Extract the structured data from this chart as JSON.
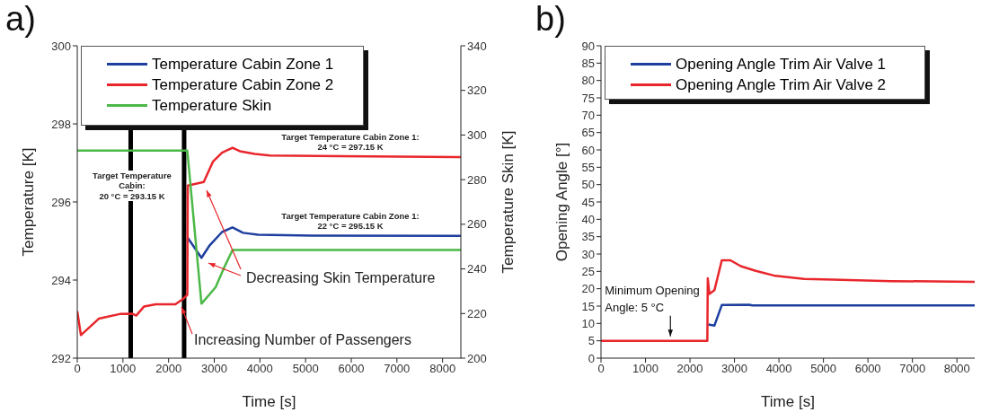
{
  "chart_data": [
    {
      "type": "line",
      "title": "a)",
      "xlabel": "Time [s]",
      "ylabel": "Temperature [K]",
      "y2label": "Temperature Skin [K]",
      "xlim": [
        0,
        8400
      ],
      "xticks": [
        0,
        1000,
        2000,
        3000,
        4000,
        5000,
        6000,
        7000,
        8000
      ],
      "ylim": [
        292,
        300
      ],
      "yticks": [
        292,
        294,
        296,
        298,
        300
      ],
      "y2lim": [
        200,
        340
      ],
      "y2ticks": [
        200,
        220,
        240,
        260,
        280,
        300,
        320,
        340
      ],
      "legend": "top",
      "marker": "none",
      "line_style": "solid",
      "series": [
        {
          "name": "Temperature Cabin Zone 1",
          "color": "#1f3f9f",
          "x": [
            2420,
            2720,
            2900,
            3170,
            3400,
            3630,
            3960,
            5140,
            8400
          ],
          "values": [
            295.08,
            294.57,
            294.89,
            295.23,
            295.35,
            295.21,
            295.16,
            295.14,
            295.13
          ]
        },
        {
          "name": "Temperature Cabin Zone 2",
          "color": "#e8262b",
          "x": [
            0,
            80,
            470,
            930,
            1200,
            1290,
            1460,
            1720,
            2150,
            2310,
            2410,
            2420,
            2770,
            2970,
            3170,
            3400,
            3560,
            3890,
            4220,
            5800,
            8400
          ],
          "values": [
            293.2,
            292.59,
            293.01,
            293.13,
            293.14,
            293.09,
            293.32,
            293.38,
            293.38,
            293.51,
            293.62,
            296.42,
            296.51,
            297.03,
            297.26,
            297.39,
            297.3,
            297.23,
            297.19,
            297.17,
            297.15
          ]
        },
        {
          "name": "Temperature Skin",
          "color": "#4cb848",
          "axis": "y2",
          "x": [
            0,
            2410,
            2720,
            3030,
            3230,
            3400,
            8400
          ],
          "values": [
            293,
            293,
            224.4,
            231.8,
            241.2,
            248.5,
            248.5
          ]
        }
      ],
      "ref_lines": [
        {
          "axis": "x",
          "value": 1170,
          "color": "#000000"
        },
        {
          "axis": "x",
          "value": 2340,
          "color": "#000000"
        }
      ],
      "annotations": [
        "Target Temperature\nCabin:\n20 °C = 293.15 K",
        "Target Temperature Cabin Zone 1:\n24 °C = 297.15 K",
        "Target Temperature Cabin Zone 1:\n22 °C = 295.15 K",
        "Decreasing Skin Temperature",
        "Increasing Number of Passengers"
      ]
    },
    {
      "type": "line",
      "title": "b)",
      "xlabel": "Time [s]",
      "ylabel": "Opening Angle [°]",
      "xlim": [
        0,
        8400
      ],
      "xticks": [
        0,
        1000,
        2000,
        3000,
        4000,
        5000,
        6000,
        7000,
        8000
      ],
      "ylim": [
        0,
        90
      ],
      "yticks": [
        0,
        5,
        10,
        15,
        20,
        25,
        30,
        35,
        40,
        45,
        50,
        55,
        60,
        65,
        70,
        75,
        80,
        85,
        90
      ],
      "legend": "top",
      "marker": "none",
      "line_style": "solid",
      "series": [
        {
          "name": "Opening Angle Trim Air Valve 1",
          "color": "#1f3f9f",
          "x": [
            2410,
            2550,
            2715,
            3330,
            3400,
            8400
          ],
          "values": [
            9.7,
            9.4,
            15.3,
            15.4,
            15.2,
            15.2
          ]
        },
        {
          "name": "Opening Angle Trim Air Valve 2",
          "color": "#e8262b",
          "x": [
            0,
            2390,
            2400,
            2435,
            2550,
            2715,
            2910,
            3140,
            3460,
            3920,
            4565,
            5210,
            6510,
            8400
          ],
          "values": [
            5,
            5,
            23,
            18.5,
            19.6,
            28.2,
            28.2,
            26.5,
            25.2,
            23.7,
            22.8,
            22.6,
            22.2,
            22
          ]
        }
      ],
      "annotations": [
        {
          "text": "Minimum Opening\nAngle: 5 °C",
          "x": 1560,
          "y": 5
        }
      ]
    }
  ]
}
